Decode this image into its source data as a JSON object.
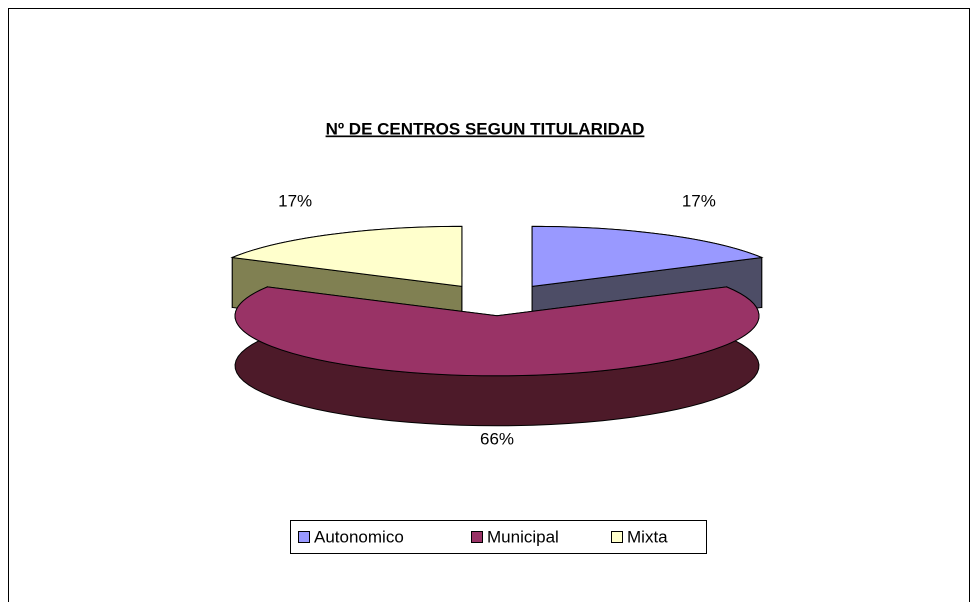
{
  "chart_data": {
    "type": "pie3d",
    "title": "Nº DE CENTROS SEGUN TITULARIDAD",
    "categories": [
      "Autonomico",
      "Municipal",
      "Mixta"
    ],
    "values": [
      17,
      66,
      17
    ],
    "value_labels": [
      "17%",
      "66%",
      "17%"
    ],
    "colors": [
      "#9999ff",
      "#993366",
      "#ffffcc"
    ],
    "legend": "bottom"
  }
}
